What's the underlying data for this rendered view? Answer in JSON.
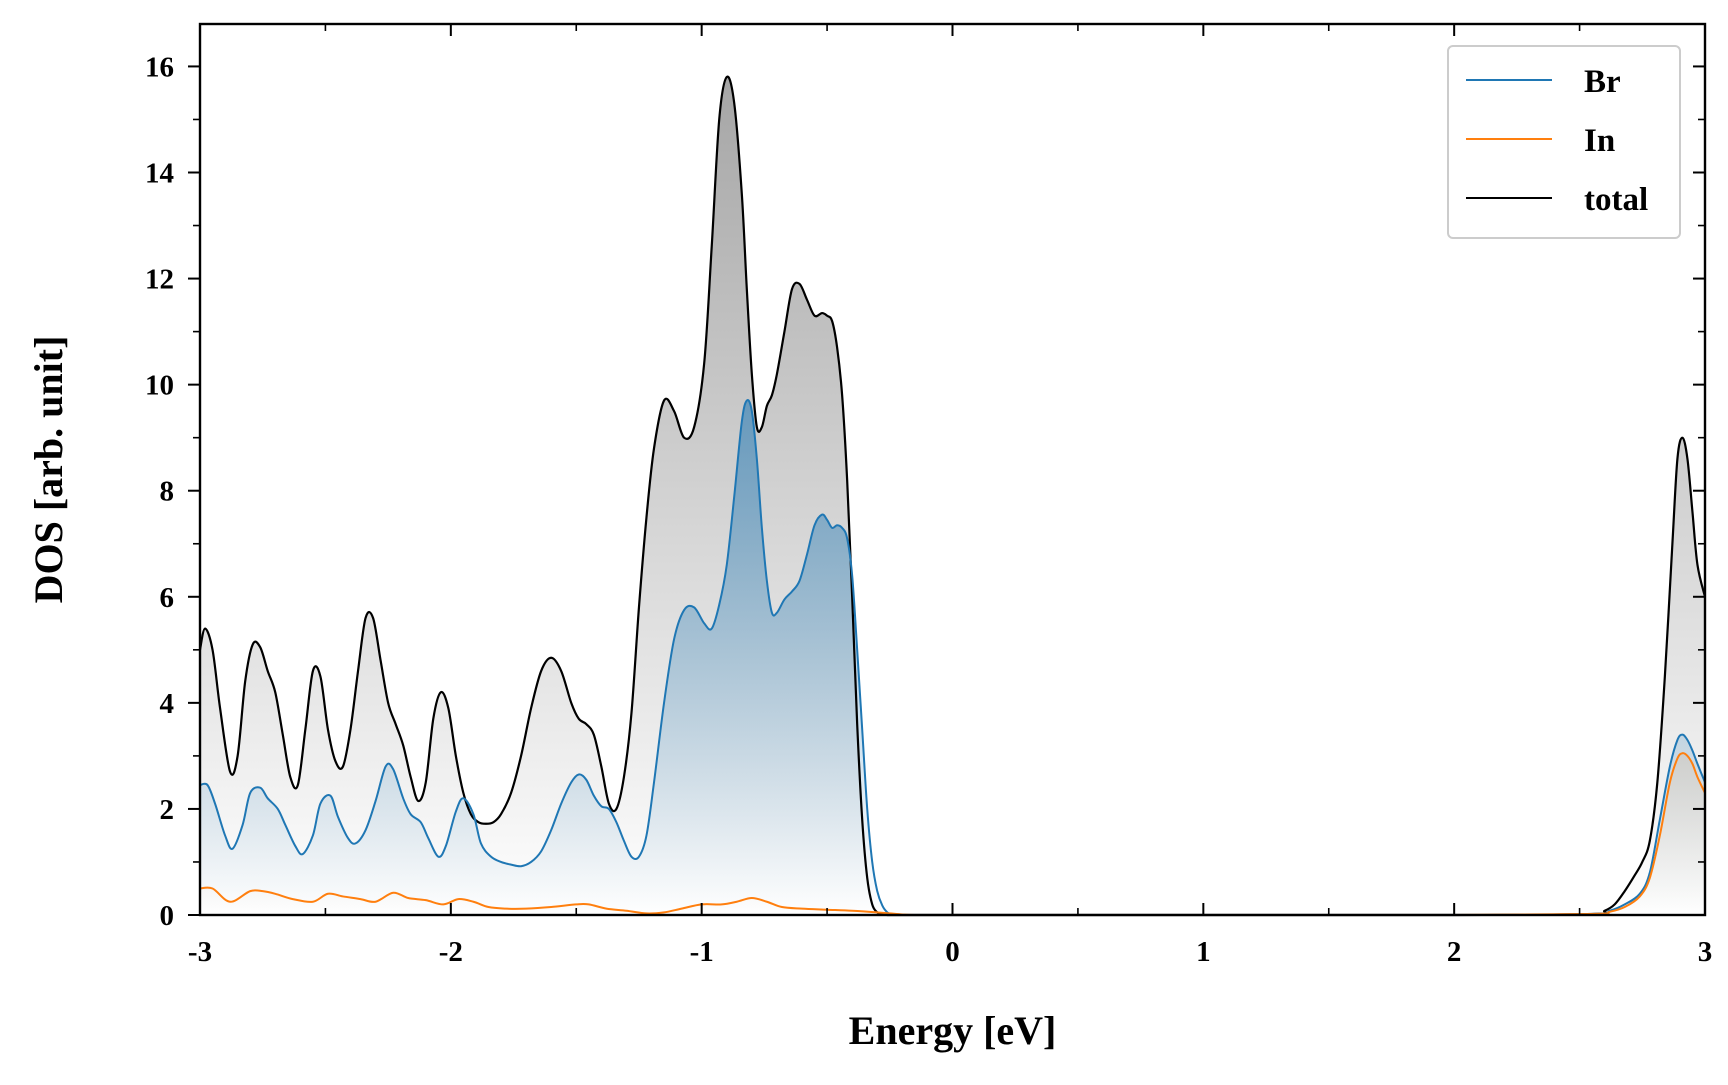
{
  "chart_data": {
    "type": "area",
    "title": "",
    "xlabel": "Energy [eV]",
    "ylabel": "DOS [arb. unit]",
    "xlim": [
      -3,
      3
    ],
    "ylim": [
      0,
      16.8
    ],
    "xticks": [
      -3,
      -2,
      -1,
      0,
      1,
      2,
      3
    ],
    "xtick_labels": [
      "-3",
      "-2",
      "-1",
      "0",
      "1",
      "2",
      "3"
    ],
    "yticks": [
      0,
      2,
      4,
      6,
      8,
      10,
      12,
      14,
      16
    ],
    "ytick_labels": [
      "0",
      "2",
      "4",
      "6",
      "8",
      "10",
      "12",
      "14",
      "16"
    ],
    "grid": false,
    "legend_position": "top-right",
    "fill_under_curves": true,
    "series": [
      {
        "name": "Br",
        "color": "#1f77b4",
        "x": [
          -3.0,
          -2.97,
          -2.94,
          -2.9,
          -2.87,
          -2.83,
          -2.8,
          -2.76,
          -2.73,
          -2.69,
          -2.66,
          -2.62,
          -2.59,
          -2.55,
          -2.52,
          -2.48,
          -2.45,
          -2.41,
          -2.38,
          -2.34,
          -2.3,
          -2.26,
          -2.23,
          -2.19,
          -2.16,
          -2.12,
          -2.09,
          -2.05,
          -2.02,
          -1.98,
          -1.95,
          -1.91,
          -1.88,
          -1.84,
          -1.8,
          -1.76,
          -1.72,
          -1.68,
          -1.64,
          -1.6,
          -1.56,
          -1.52,
          -1.49,
          -1.46,
          -1.43,
          -1.4,
          -1.37,
          -1.34,
          -1.31,
          -1.28,
          -1.25,
          -1.22,
          -1.19,
          -1.15,
          -1.11,
          -1.07,
          -1.03,
          -0.99,
          -0.96,
          -0.93,
          -0.9,
          -0.87,
          -0.84,
          -0.82,
          -0.8,
          -0.78,
          -0.76,
          -0.74,
          -0.72,
          -0.7,
          -0.67,
          -0.64,
          -0.61,
          -0.58,
          -0.55,
          -0.52,
          -0.5,
          -0.48,
          -0.46,
          -0.44,
          -0.42,
          -0.4,
          -0.38,
          -0.36,
          -0.34,
          -0.32,
          -0.3,
          -0.28,
          -0.26,
          -0.24,
          -0.22,
          -0.2,
          -0.18,
          -0.16,
          -0.14,
          -0.1,
          0.0,
          1.0,
          2.0,
          2.55,
          2.62,
          2.68,
          2.74,
          2.78,
          2.82,
          2.86,
          2.89,
          2.91,
          2.93,
          2.95,
          2.97,
          3.0
        ],
        "y": [
          2.45,
          2.45,
          2.1,
          1.5,
          1.25,
          1.7,
          2.3,
          2.4,
          2.2,
          2.0,
          1.7,
          1.3,
          1.15,
          1.5,
          2.1,
          2.25,
          1.85,
          1.45,
          1.35,
          1.6,
          2.15,
          2.8,
          2.75,
          2.2,
          1.9,
          1.75,
          1.45,
          1.1,
          1.3,
          1.95,
          2.2,
          1.9,
          1.35,
          1.1,
          1.0,
          0.95,
          0.92,
          1.0,
          1.2,
          1.6,
          2.1,
          2.5,
          2.65,
          2.55,
          2.25,
          2.05,
          2.0,
          1.75,
          1.4,
          1.1,
          1.1,
          1.5,
          2.5,
          4.0,
          5.2,
          5.75,
          5.8,
          5.5,
          5.4,
          5.85,
          6.6,
          7.9,
          9.3,
          9.7,
          9.5,
          8.6,
          7.3,
          6.3,
          5.7,
          5.7,
          5.95,
          6.1,
          6.3,
          6.8,
          7.35,
          7.55,
          7.45,
          7.3,
          7.35,
          7.3,
          7.1,
          6.4,
          5.0,
          3.5,
          2.0,
          1.0,
          0.45,
          0.18,
          0.05,
          0.01,
          0.0,
          0.0,
          0.0,
          0.0,
          0.0,
          0.0,
          0.0,
          0.0,
          0.0,
          0.02,
          0.08,
          0.2,
          0.4,
          0.8,
          1.8,
          2.8,
          3.3,
          3.4,
          3.3,
          3.1,
          2.85,
          2.5
        ]
      },
      {
        "name": "In",
        "color": "#ff7f0e",
        "x": [
          -3.0,
          -2.95,
          -2.88,
          -2.8,
          -2.75,
          -2.7,
          -2.63,
          -2.55,
          -2.49,
          -2.43,
          -2.36,
          -2.3,
          -2.23,
          -2.17,
          -2.1,
          -2.03,
          -1.97,
          -1.91,
          -1.85,
          -1.78,
          -1.7,
          -1.6,
          -1.5,
          -1.45,
          -1.38,
          -1.3,
          -1.22,
          -1.15,
          -1.08,
          -1.0,
          -0.92,
          -0.86,
          -0.8,
          -0.74,
          -0.68,
          -0.6,
          -0.5,
          -0.4,
          -0.3,
          -0.25,
          -0.2,
          -0.15,
          0.0,
          1.0,
          2.0,
          2.55,
          2.62,
          2.68,
          2.74,
          2.78,
          2.82,
          2.86,
          2.89,
          2.91,
          2.93,
          2.95,
          2.97,
          3.0
        ],
        "y": [
          0.5,
          0.5,
          0.25,
          0.45,
          0.45,
          0.4,
          0.3,
          0.25,
          0.4,
          0.35,
          0.3,
          0.25,
          0.42,
          0.32,
          0.28,
          0.2,
          0.3,
          0.25,
          0.15,
          0.12,
          0.12,
          0.15,
          0.2,
          0.2,
          0.12,
          0.08,
          0.03,
          0.05,
          0.12,
          0.2,
          0.2,
          0.25,
          0.32,
          0.25,
          0.15,
          0.12,
          0.1,
          0.08,
          0.05,
          0.03,
          0.01,
          0.0,
          0.0,
          0.0,
          0.0,
          0.02,
          0.06,
          0.15,
          0.35,
          0.7,
          1.5,
          2.5,
          2.95,
          3.05,
          3.0,
          2.85,
          2.6,
          2.3
        ]
      },
      {
        "name": "total",
        "color": "#000000",
        "x": [
          -3.0,
          -2.98,
          -2.95,
          -2.92,
          -2.88,
          -2.85,
          -2.82,
          -2.79,
          -2.76,
          -2.73,
          -2.7,
          -2.67,
          -2.64,
          -2.61,
          -2.58,
          -2.55,
          -2.52,
          -2.49,
          -2.46,
          -2.43,
          -2.4,
          -2.37,
          -2.34,
          -2.31,
          -2.28,
          -2.25,
          -2.22,
          -2.19,
          -2.16,
          -2.13,
          -2.1,
          -2.07,
          -2.04,
          -2.01,
          -1.98,
          -1.95,
          -1.92,
          -1.89,
          -1.86,
          -1.83,
          -1.8,
          -1.76,
          -1.72,
          -1.68,
          -1.64,
          -1.6,
          -1.56,
          -1.52,
          -1.49,
          -1.46,
          -1.43,
          -1.4,
          -1.37,
          -1.34,
          -1.31,
          -1.28,
          -1.25,
          -1.22,
          -1.19,
          -1.15,
          -1.11,
          -1.07,
          -1.03,
          -0.99,
          -0.96,
          -0.93,
          -0.9,
          -0.87,
          -0.84,
          -0.82,
          -0.8,
          -0.78,
          -0.76,
          -0.74,
          -0.72,
          -0.7,
          -0.67,
          -0.64,
          -0.61,
          -0.58,
          -0.55,
          -0.52,
          -0.5,
          -0.48,
          -0.46,
          -0.44,
          -0.42,
          -0.4,
          -0.38,
          -0.36,
          -0.34,
          -0.32,
          -0.3,
          -0.28,
          -0.26,
          -0.24,
          -0.22,
          -0.2,
          -0.18,
          -0.16,
          -0.14,
          -0.1,
          0.0,
          1.0,
          2.0,
          2.55,
          2.6,
          2.64,
          2.68,
          2.72,
          2.75,
          2.78,
          2.81,
          2.84,
          2.87,
          2.89,
          2.91,
          2.93,
          2.95,
          2.97,
          3.0
        ],
        "y": [
          5.0,
          5.4,
          5.0,
          3.9,
          2.7,
          3.0,
          4.4,
          5.1,
          5.05,
          4.6,
          4.2,
          3.4,
          2.6,
          2.45,
          3.5,
          4.6,
          4.5,
          3.5,
          2.9,
          2.8,
          3.5,
          4.6,
          5.6,
          5.6,
          4.8,
          4.0,
          3.6,
          3.2,
          2.6,
          2.15,
          2.5,
          3.7,
          4.2,
          3.9,
          3.0,
          2.3,
          1.9,
          1.75,
          1.72,
          1.75,
          1.9,
          2.3,
          3.0,
          3.9,
          4.6,
          4.85,
          4.6,
          4.0,
          3.7,
          3.6,
          3.4,
          2.8,
          2.1,
          2.0,
          2.6,
          3.8,
          5.8,
          7.5,
          8.8,
          9.7,
          9.5,
          9.0,
          9.2,
          10.4,
          12.6,
          15.0,
          15.8,
          15.3,
          13.6,
          11.8,
          10.2,
          9.2,
          9.2,
          9.6,
          9.8,
          10.2,
          11.0,
          11.8,
          11.9,
          11.6,
          11.3,
          11.35,
          11.3,
          11.2,
          10.7,
          9.8,
          8.2,
          6.0,
          3.6,
          1.8,
          0.7,
          0.2,
          0.05,
          0.01,
          0.0,
          0.0,
          0.0,
          0.0,
          0.0,
          0.0,
          0.0,
          0.0,
          0.0,
          0.0,
          0.0,
          0.02,
          0.08,
          0.2,
          0.45,
          0.75,
          1.0,
          1.4,
          2.5,
          4.5,
          7.0,
          8.6,
          9.0,
          8.6,
          7.6,
          6.6,
          6.0
        ]
      }
    ]
  }
}
